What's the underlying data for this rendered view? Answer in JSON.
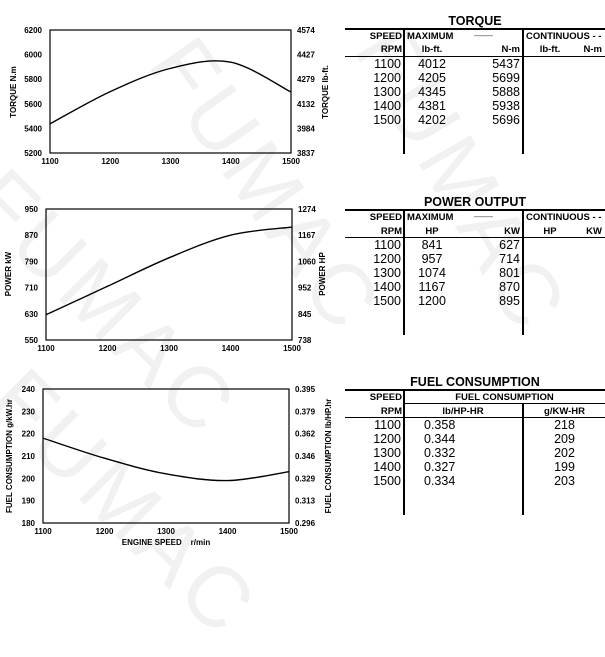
{
  "watermark": "FUMAC",
  "chart_data": [
    {
      "type": "line",
      "title": "Torque",
      "x": [
        1100,
        1200,
        1300,
        1400,
        1500
      ],
      "series": [
        {
          "name": "Torque N.m",
          "values": [
            5437,
            5699,
            5888,
            5938,
            5696
          ]
        }
      ],
      "xlabel": "",
      "ylabel": "TORQUE   N.m",
      "ylabel_right": "TORQUE   lb-ft.",
      "xlim": [
        1100,
        1500
      ],
      "ylim": [
        5200,
        6200
      ],
      "xticks": [
        "1100",
        "1200",
        "1300",
        "1400",
        "1500"
      ],
      "yticks_left": [
        "6200",
        "6000",
        "5800",
        "5600",
        "5400",
        "5200"
      ],
      "yticks_right": [
        "4574",
        "4427",
        "4279",
        "4132",
        "3984",
        "3837"
      ],
      "grid": false
    },
    {
      "type": "line",
      "title": "Power Output",
      "x": [
        1100,
        1200,
        1300,
        1400,
        1500
      ],
      "series": [
        {
          "name": "Power kW",
          "values": [
            627,
            714,
            801,
            870,
            895
          ]
        }
      ],
      "xlabel": "",
      "ylabel": "POWER   kW",
      "ylabel_right": "POWER   HP",
      "xlim": [
        1100,
        1500
      ],
      "ylim": [
        550,
        950
      ],
      "xticks": [
        "1100",
        "1200",
        "1300",
        "1400",
        "1500"
      ],
      "yticks_left": [
        "950",
        "870",
        "790",
        "710",
        "630",
        "550"
      ],
      "yticks_right": [
        "1274",
        "1167",
        "1060",
        "952",
        "845",
        "738"
      ],
      "grid": false
    },
    {
      "type": "line",
      "title": "Fuel Consumption",
      "x": [
        1100,
        1200,
        1300,
        1400,
        1500
      ],
      "series": [
        {
          "name": "Fuel consumption g/kW.hr",
          "values": [
            218,
            209,
            202,
            199,
            203
          ]
        }
      ],
      "xlabel": "ENGINE SPEED    r/min",
      "ylabel": "FUEL  CONSUMPTION   g/kW.hr",
      "ylabel_right": "FUEL  CONSUMPTION   lb/HP.hr",
      "xlim": [
        1100,
        1500
      ],
      "ylim": [
        180,
        240
      ],
      "xticks": [
        "1100",
        "1200",
        "1300",
        "1400",
        "1500"
      ],
      "yticks_left": [
        "240",
        "230",
        "220",
        "210",
        "200",
        "190",
        "180"
      ],
      "yticks_right": [
        "0.395",
        "0.379",
        "0.362",
        "0.346",
        "0.329",
        "0.313",
        "0.296"
      ],
      "grid": false
    }
  ],
  "tables": {
    "torque": {
      "title": "TORQUE",
      "speed_label": "SPEED",
      "rpm_label": "RPM",
      "maximum_label": "MAXIMUM",
      "maximum_dash": "——",
      "continuous_label": "CONTINUOUS - -",
      "col1": "lb-ft.",
      "col2": "N-m",
      "cont_col1": "lb-ft.",
      "cont_col2": "N-m",
      "rows": [
        {
          "rpm": "1100",
          "a": "4012",
          "b": "5437"
        },
        {
          "rpm": "1200",
          "a": "4205",
          "b": "5699"
        },
        {
          "rpm": "1300",
          "a": "4345",
          "b": "5888"
        },
        {
          "rpm": "1400",
          "a": "4381",
          "b": "5938"
        },
        {
          "rpm": "1500",
          "a": "4202",
          "b": "5696"
        }
      ]
    },
    "power": {
      "title": "POWER OUTPUT",
      "speed_label": "SPEED",
      "rpm_label": "RPM",
      "maximum_label": "MAXIMUM",
      "maximum_dash": "——",
      "continuous_label": "CONTINUOUS - -",
      "col1": "HP",
      "col2": "KW",
      "cont_col1": "HP",
      "cont_col2": "KW",
      "rows": [
        {
          "rpm": "1100",
          "a": "841",
          "b": "627"
        },
        {
          "rpm": "1200",
          "a": "957",
          "b": "714"
        },
        {
          "rpm": "1300",
          "a": "1074",
          "b": "801"
        },
        {
          "rpm": "1400",
          "a": "1167",
          "b": "870"
        },
        {
          "rpm": "1500",
          "a": "1200",
          "b": "895"
        }
      ]
    },
    "fuel": {
      "title": "FUEL CONSUMPTION",
      "speed_label": "SPEED",
      "rpm_label": "RPM",
      "group_label": "FUEL CONSUMPTION",
      "col1": "lb/HP-HR",
      "col2": "g/KW-HR",
      "rows": [
        {
          "rpm": "1100",
          "a": "0.358",
          "b": "218"
        },
        {
          "rpm": "1200",
          "a": "0.344",
          "b": "209"
        },
        {
          "rpm": "1300",
          "a": "0.332",
          "b": "202"
        },
        {
          "rpm": "1400",
          "a": "0.327",
          "b": "199"
        },
        {
          "rpm": "1500",
          "a": "0.334",
          "b": "203"
        }
      ]
    }
  }
}
